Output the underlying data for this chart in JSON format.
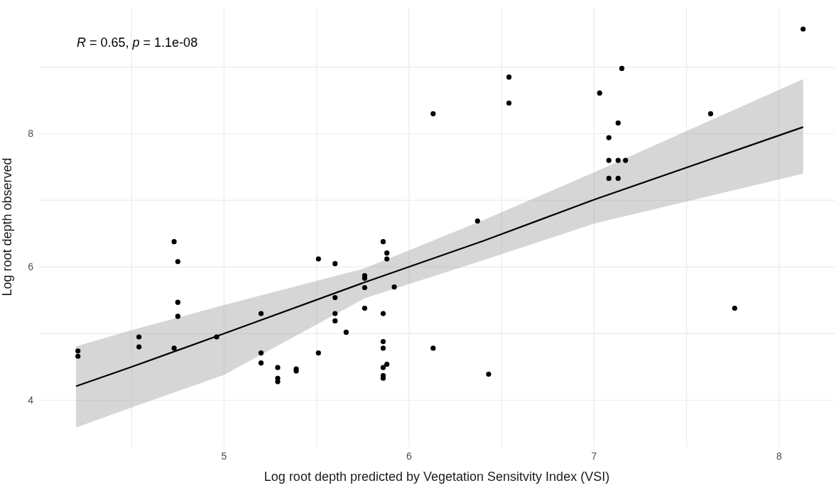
{
  "chart_data": {
    "type": "scatter",
    "xlabel": "Log root depth predicted by Vegetation Sensitvity Index (VSI)",
    "ylabel": "Log root depth observed",
    "annotations": [
      "R = 0.65, p = 1.1e-08"
    ],
    "xlim": [
      4.0,
      8.3
    ],
    "ylim": [
      3.3,
      9.9
    ],
    "xticks": [
      {
        "value": 4.5,
        "label": null
      },
      5,
      {
        "value": 5.5,
        "label": null
      },
      6,
      {
        "value": 6.5,
        "label": null
      },
      7,
      {
        "value": 7.5,
        "label": null
      },
      8
    ],
    "yticks": [
      4,
      {
        "value": 5,
        "label": null
      },
      6,
      {
        "value": 7,
        "label": null
      },
      8,
      {
        "value": 9,
        "label": null
      }
    ],
    "grid": true,
    "marker": "circle",
    "series": [
      {
        "type": "line",
        "color": "#000000",
        "line_style": "solid",
        "marker": "none",
        "x": [
          4.2,
          4.5,
          5.0,
          5.76,
          6.4,
          7.0,
          8.13
        ],
        "values": [
          4.21,
          4.5,
          5.0,
          5.77,
          6.39,
          7.01,
          8.1
        ],
        "lower": [
          3.59,
          3.89,
          4.38,
          5.53,
          6.1,
          6.65,
          7.4
        ],
        "upper": [
          4.81,
          5.05,
          5.43,
          5.98,
          6.7,
          7.42,
          8.82
        ]
      },
      {
        "color": "#000000",
        "x": [
          4.21,
          4.21,
          4.54,
          4.54,
          4.73,
          4.75,
          4.75,
          4.75,
          4.73,
          4.96,
          5.2,
          5.2,
          5.2,
          5.29,
          5.29,
          5.29,
          5.39,
          5.39,
          5.51,
          5.51,
          5.6,
          5.6,
          5.6,
          5.6,
          5.66,
          5.86,
          5.88,
          5.88,
          5.76,
          5.76,
          5.76,
          5.92,
          5.76,
          5.86,
          5.86,
          5.86,
          5.88,
          5.86,
          5.86,
          5.86,
          6.13,
          6.43,
          6.13,
          6.54,
          6.54,
          6.37,
          7.03,
          7.15,
          7.13,
          7.08,
          7.08,
          7.13,
          7.17,
          7.08,
          7.13,
          7.63,
          8.13,
          7.76
        ],
        "values": [
          4.74,
          4.66,
          4.95,
          4.8,
          6.38,
          6.08,
          5.47,
          5.26,
          4.78,
          4.95,
          5.3,
          4.71,
          4.56,
          4.49,
          4.33,
          4.28,
          4.47,
          4.44,
          6.12,
          4.71,
          6.05,
          5.54,
          5.3,
          5.19,
          5.02,
          6.38,
          6.21,
          6.12,
          5.87,
          5.83,
          5.69,
          5.7,
          5.38,
          5.3,
          4.88,
          4.78,
          4.54,
          4.49,
          4.37,
          4.33,
          4.78,
          4.39,
          8.3,
          8.85,
          8.46,
          6.69,
          8.61,
          8.98,
          8.16,
          7.94,
          7.6,
          7.6,
          7.6,
          7.33,
          7.33,
          8.3,
          9.57,
          5.38
        ]
      }
    ]
  }
}
